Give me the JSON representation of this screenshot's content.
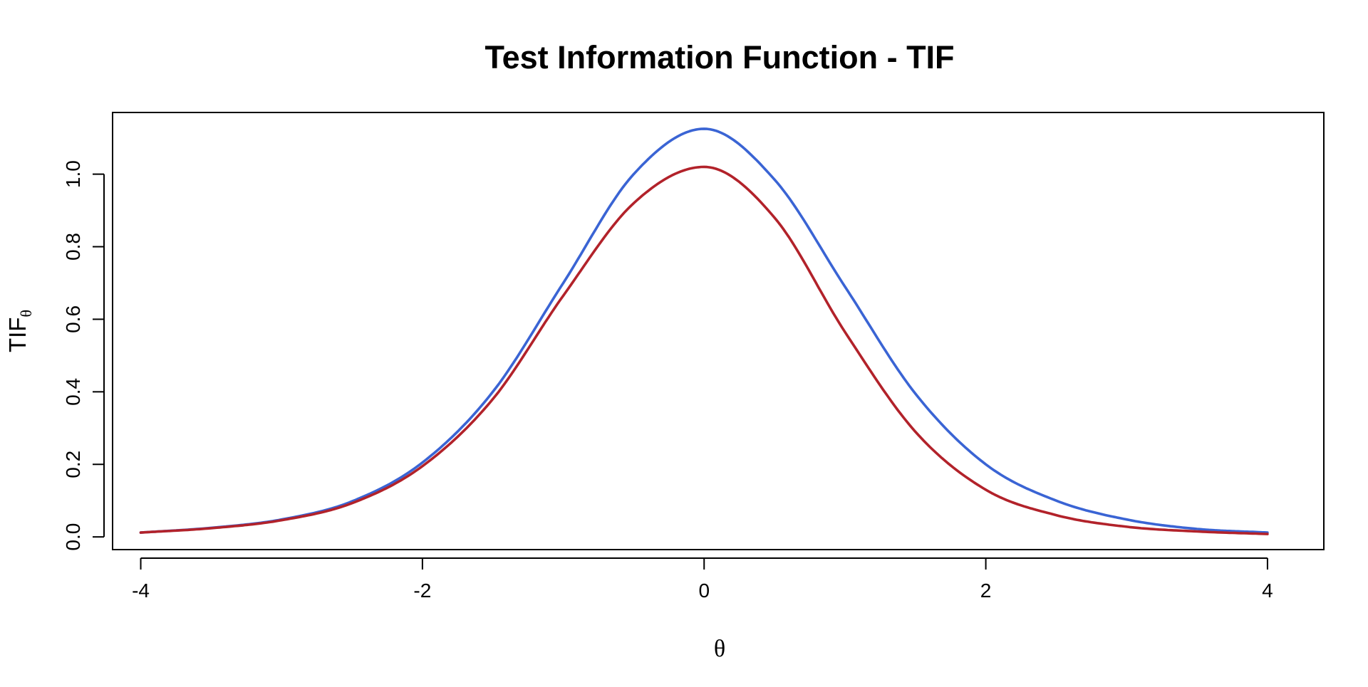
{
  "chart_data": {
    "type": "line",
    "title": "Test Information Function - TIF",
    "xlabel": "θ",
    "ylabel": {
      "main": "TIF",
      "subscript": "θ"
    },
    "xlim": [
      -4.2,
      4.4
    ],
    "ylim": [
      -0.035,
      1.17
    ],
    "xticks": [
      -4,
      -2,
      0,
      2,
      4
    ],
    "xtick_labels": [
      "-4",
      "-2",
      "0",
      "2",
      "4"
    ],
    "yticks": [
      0.0,
      0.2,
      0.4,
      0.6,
      0.8,
      1.0
    ],
    "ytick_labels": [
      "0.0",
      "0.2",
      "0.4",
      "0.6",
      "0.8",
      "1.0"
    ],
    "grid": false,
    "legend": "none",
    "series": [
      {
        "color": "#3a64d4",
        "x": [
          -4.0,
          -3.5,
          -3.0,
          -2.5,
          -2.0,
          -1.5,
          -1.0,
          -0.5,
          0.0,
          0.5,
          1.0,
          1.5,
          2.0,
          2.5,
          3.0,
          3.5,
          4.0
        ],
        "y": [
          0.012,
          0.025,
          0.048,
          0.098,
          0.205,
          0.4,
          0.7,
          1.0,
          1.125,
          0.985,
          0.69,
          0.395,
          0.2,
          0.1,
          0.048,
          0.022,
          0.012
        ]
      },
      {
        "color": "#b2222a",
        "x": [
          -4.0,
          -3.5,
          -3.0,
          -2.5,
          -2.0,
          -1.5,
          -1.0,
          -0.5,
          0.0,
          0.5,
          1.0,
          1.5,
          2.0,
          2.5,
          3.0,
          3.5,
          4.0
        ],
        "y": [
          0.012,
          0.024,
          0.046,
          0.093,
          0.195,
          0.38,
          0.665,
          0.92,
          1.02,
          0.88,
          0.565,
          0.29,
          0.13,
          0.06,
          0.028,
          0.015,
          0.008
        ]
      }
    ]
  }
}
